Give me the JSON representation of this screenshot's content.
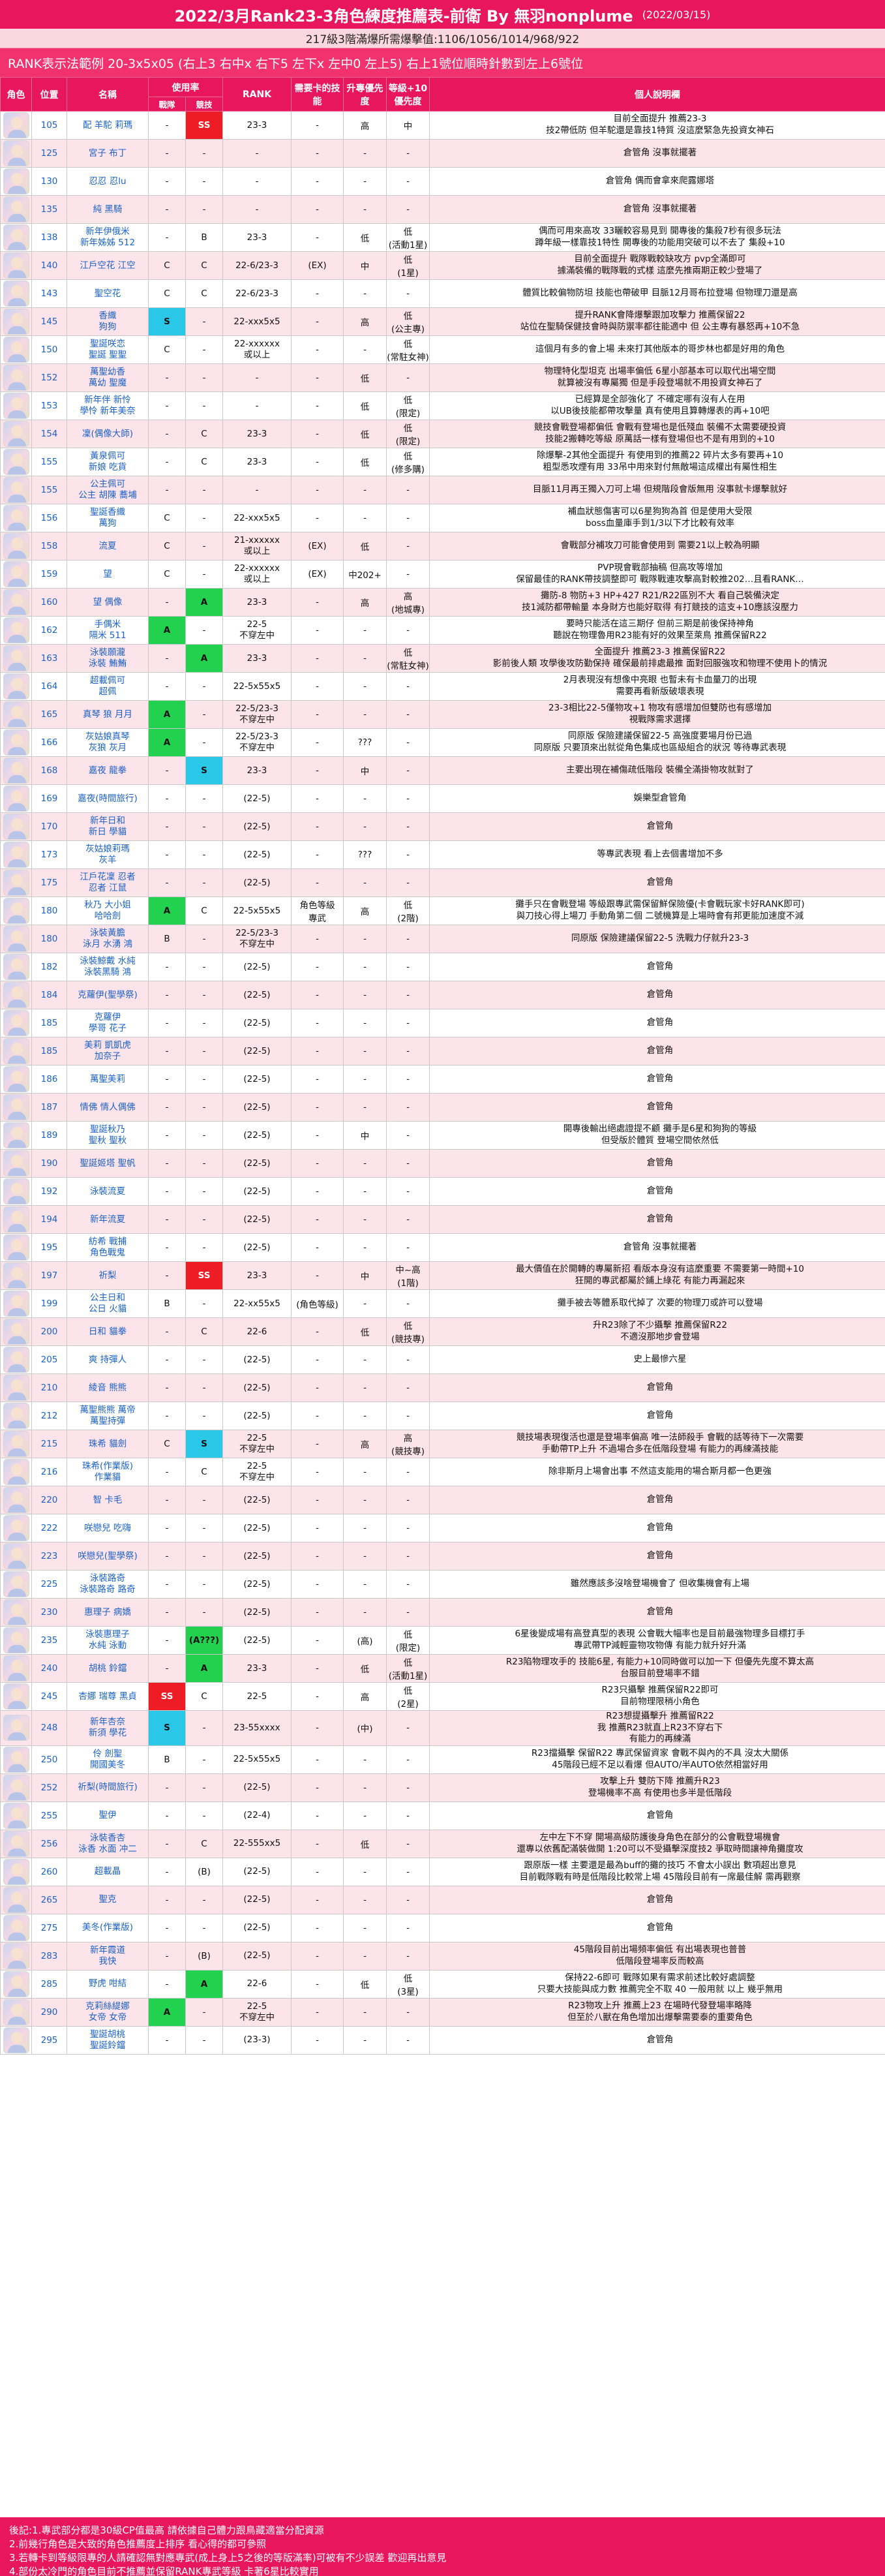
{
  "header": {
    "title": "2022/3月Rank23-3角色練度推薦表-前衛 By 無羽nonplume",
    "date": "(2022/03/15)",
    "subtitle": "217級3階滿爆所需爆擊值:1106/1056/1014/968/922",
    "rank_legend": "RANK表示法範例 20-3x5x05 (右上3 右中x 右下5 左下x 左中0 左上5) 右上1號位順時針數到左上6號位"
  },
  "columns": {
    "role": "角色",
    "position": "位置",
    "name": "名稱",
    "usage": "使用率",
    "usage_pvp": "戰隊",
    "usage_pve": "競技",
    "rank": "RANK",
    "unique_equipment": "需要卡的技能",
    "priority": "升專優先度",
    "level_priority": "等級+10優先度",
    "notes": "個人說明欄"
  },
  "rows": [
    {
      "pos": "105",
      "name": "配 羊駝 莉瑪",
      "pvp": "-",
      "pve": "SS",
      "rank": "23-3",
      "ue": "-",
      "prio": "高",
      "lv": "中",
      "note": "目前全面提升 推薦23-3\n技2帶低防 但羊駝還是靠技1特質 沒這麼緊急先投資女神石",
      "pve_color": "red"
    },
    {
      "pos": "125",
      "name": "宮子 布丁",
      "pvp": "-",
      "pve": "-",
      "rank": "-",
      "ue": "-",
      "prio": "-",
      "lv": "-",
      "note": "倉管角 沒事就擺著"
    },
    {
      "pos": "130",
      "name": "忍忍 忍lu",
      "pvp": "-",
      "pve": "-",
      "rank": "-",
      "ue": "-",
      "prio": "-",
      "lv": "-",
      "note": "倉管角 偶而會拿來爬露娜塔"
    },
    {
      "pos": "135",
      "name": "純 黑騎",
      "pvp": "-",
      "pve": "-",
      "rank": "-",
      "ue": "-",
      "prio": "-",
      "lv": "-",
      "note": "倉管角 沒事就擺著"
    },
    {
      "pos": "138",
      "name": "新年伊俄米\n新年姊姊 512",
      "pvp": "-",
      "pve": "B",
      "rank": "23-3",
      "ue": "-",
      "prio": "低",
      "lv": "低\n(活動1星)",
      "note": "偶而可用來高攻 33曬較容易見到 開專後的集殺7秒有很多玩法\n蹲年級一樣靠技1特性 開專後的功能用突破可以不去了 集殺+10"
    },
    {
      "pos": "140",
      "name": "江戶空花 江空",
      "pvp": "C",
      "pve": "C",
      "rank": "22-6/23-3",
      "ue": "(EX)",
      "prio": "中",
      "lv": "低\n(1星)",
      "note": "目前全面提升 戰隊戰較缺攻方 pvp全滿即可\n據滿裝備的戰隊戰的式樣 這麼先推兩期正較少登場了"
    },
    {
      "pos": "143",
      "name": "聖空花",
      "pvp": "C",
      "pve": "C",
      "rank": "22-6/23-3",
      "ue": "-",
      "prio": "-",
      "lv": "-",
      "note": "體質比較偏物防坦 技能也帶破甲 目脈12月哥布拉登場 但物理刀還是高"
    },
    {
      "pos": "145",
      "name": "香織\n狗狗",
      "pvp": "S",
      "pve": "-",
      "rank": "22-xxx5x5",
      "ue": "-",
      "prio": "高",
      "lv": "低\n(公主專)",
      "note": "提升RANK會降爆擊跟加攻擊力 推薦保留22\n站位在聖騎保健技會時與防禦率都往能適中 但 公主專有暴怒再+10不急",
      "pvp_color": "cyan"
    },
    {
      "pos": "150",
      "name": "聖誕咲恋\n聖誕 聖聖",
      "pvp": "C",
      "pve": "-",
      "rank": "22-xxxxxx\n或以上",
      "ue": "-",
      "prio": "-",
      "lv": "低\n(常駐女神)",
      "note": "這個月有多的會上場 未來打其他版本的哥步林也都是好用的角色"
    },
    {
      "pos": "152",
      "name": "萬聖幼香\n萬幼 聖魔",
      "pvp": "-",
      "pve": "-",
      "rank": "-",
      "ue": "-",
      "prio": "低",
      "lv": "-",
      "note": "物理特化型坦克 出場率偏低 6星小部基本可以取代出場空間\n就算被沒有專屬獨 但是手段登場就不用投資女神石了"
    },
    {
      "pos": "153",
      "name": "新年伴 新怜\n學怜 新年美奈",
      "pvp": "-",
      "pve": "-",
      "rank": "-",
      "ue": "-",
      "prio": "低",
      "lv": "低\n(限定)",
      "note": "已經算是全部強化了 不確定哪有沒有人在用\n以UB後技能都帶攻擊量 真有使用且算轉爆表的再+10吧"
    },
    {
      "pos": "154",
      "name": "凜(偶像大師)",
      "pvp": "-",
      "pve": "C",
      "rank": "23-3",
      "ue": "-",
      "prio": "低",
      "lv": "低\n(限定)",
      "note": "競技會戰登場都偏低 會戰有登場也是低殘血 裝備不太需要硬投資\n技能2搬轉吃等級 原萬話一樣有登場但也不是有用到的+10"
    },
    {
      "pos": "155",
      "name": "黃泉佩可\n新娘 吃貨",
      "pvp": "-",
      "pve": "C",
      "rank": "23-3",
      "ue": "-",
      "prio": "低",
      "lv": "低\n(修多購)",
      "note": "除爆擊-2其他全面提升 有使用到的推薦22 碎片太多有要再+10\n粗型悉攻煙有用 33吊中用來對付無敵場這成權出有屬性相生"
    },
    {
      "pos": "155",
      "name": "公主佩可\n公主 胡陳 蕎埔",
      "pvp": "-",
      "pve": "-",
      "rank": "-",
      "ue": "-",
      "prio": "-",
      "lv": "-",
      "note": "目脈11月再王獨入刀可上場 但規階段會版無用 沒事就卡爆擊就好"
    },
    {
      "pos": "156",
      "name": "聖誕香織\n萬狗",
      "pvp": "C",
      "pve": "-",
      "rank": "22-xxx5x5",
      "ue": "-",
      "prio": "-",
      "lv": "-",
      "note": "補血狀態傷害可以6星狗狗為首 但是使用大受限\nboss血量庫手到1/3以下才比較有效率"
    },
    {
      "pos": "158",
      "name": "流夏",
      "pvp": "C",
      "pve": "-",
      "rank": "21-xxxxxx\n或以上",
      "ue": "(EX)",
      "prio": "低",
      "lv": "-",
      "note": "會戰部分補攻刀可能會使用到 需要21以上較為明顯"
    },
    {
      "pos": "159",
      "name": "望",
      "pvp": "C",
      "pve": "-",
      "rank": "22-xxxxxx\n或以上",
      "ue": "(EX)",
      "prio": "中202+",
      "lv": "-",
      "note": "PVP現會戰部抽稿 但高攻等增加\n保留最佳的RANK帶技調整即可 戰隊戰連攻擊高對較推202…且看RANK…"
    },
    {
      "pos": "160",
      "name": "望 偶像",
      "pvp": "-",
      "pve": "A",
      "rank": "23-3",
      "ue": "-",
      "prio": "高",
      "lv": "高\n(地城專)",
      "note": "攤防-8 物防+3 HP+427 R21/R22區別不大 看自己裝備決定\n技1減防都帶輸量 本身財方也能好取得 有打競技的這支+10應該沒壓力",
      "pve_color": "green"
    },
    {
      "pos": "162",
      "name": "手偶米\n隔米 511",
      "pvp": "A",
      "pve": "-",
      "rank": "22-5\n不穿左中",
      "ue": "-",
      "prio": "-",
      "lv": "-",
      "note": "要時只能活在這三期仔 但前三期是前後保持神角\n聽說在物理魯用R23能有好的效果至萊鳥 推薦保留R22",
      "pvp_color": "green"
    },
    {
      "pos": "163",
      "name": "泳裝願瀧\n泳裝 鮪鮪",
      "pvp": "-",
      "pve": "A",
      "rank": "23-3",
      "ue": "-",
      "prio": "-",
      "lv": "低\n(常駐女神)",
      "note": "全面提升 推薦23-3 推薦保留R22\n影前後人類 攻學後攻防勤保持 確保最前排處最推 面對回服強攻和物理不使用卜的情況",
      "pve_color": "green"
    },
    {
      "pos": "164",
      "name": "超載佩可\n超佩",
      "pvp": "-",
      "pve": "-",
      "rank": "22-5x55x5",
      "ue": "-",
      "prio": "-",
      "lv": "-",
      "note": "2月表現沒有想像中亮眼 也暫未有卡血量刀的出現\n需要再看新版破壞表現"
    },
    {
      "pos": "165",
      "name": "真琴 狼 月月",
      "pvp": "A",
      "pve": "-",
      "rank": "22-5/23-3\n不穿左中",
      "ue": "-",
      "prio": "-",
      "lv": "-",
      "note": "23-3相比22-5僅物攻+1 物攻有感增加但雙防也有感增加\n視戰隊需求選擇",
      "pvp_color": "green"
    },
    {
      "pos": "166",
      "name": "灰姑娘真琴\n灰狼 灰月",
      "pvp": "A",
      "pve": "-",
      "rank": "22-5/23-3\n不穿左中",
      "ue": "-",
      "prio": "???",
      "lv": "-",
      "note": "同原版 保險建議保留22-5 高強度要場月份已過\n同原版 只要頂來出就從角色集成也區級組合的狀況 等待專武表現",
      "pvp_color": "green"
    },
    {
      "pos": "168",
      "name": "嘉夜 龍拳",
      "pvp": "-",
      "pve": "S",
      "rank": "23-3",
      "ue": "-",
      "prio": "中",
      "lv": "-",
      "note": "主要出現在補傷疏低階段 裝備全滿掛物攻就對了",
      "pve_color": "cyan"
    },
    {
      "pos": "169",
      "name": "嘉夜(時間旅行)",
      "pvp": "-",
      "pve": "-",
      "rank": "(22-5)",
      "ue": "-",
      "prio": "-",
      "lv": "-",
      "note": "娛樂型倉管角"
    },
    {
      "pos": "170",
      "name": "新年日和\n新日 學貓",
      "pvp": "-",
      "pve": "-",
      "rank": "(22-5)",
      "ue": "-",
      "prio": "-",
      "lv": "-",
      "note": "倉管角"
    },
    {
      "pos": "173",
      "name": "灰姑娘莉瑪\n灰羊",
      "pvp": "-",
      "pve": "-",
      "rank": "(22-5)",
      "ue": "-",
      "prio": "???",
      "lv": "-",
      "note": "等專武表現 看上去個書增加不多"
    },
    {
      "pos": "175",
      "name": "江戶花凜 忍者\n忍者 江鼠",
      "pvp": "-",
      "pve": "-",
      "rank": "(22-5)",
      "ue": "-",
      "prio": "-",
      "lv": "-",
      "note": "倉管角"
    },
    {
      "pos": "180",
      "name": "秋乃 大小姐\n哈哈劍",
      "pvp": "A",
      "pve": "C",
      "rank": "22-5x55x5",
      "ue": "角色等級\n專武",
      "prio": "高",
      "lv": "低\n(2階)",
      "note": "攤手只在會戰登場 等級跟專武需保留鮮保險優(卡會戰玩家卡好RANK即可)\n與刀技心得上場刀 手動角第二個 二號機算是上場時會有邦更能加速度不減",
      "pvp_color": "green"
    },
    {
      "pos": "180",
      "name": "泳裝黃膽\n泳月 水湧 鴻",
      "pvp": "B",
      "pve": "-",
      "rank": "22-5/23-3\n不穿左中",
      "ue": "-",
      "prio": "-",
      "lv": "-",
      "note": "同原版 保險建議保留22-5 洗戰力仔就升23-3"
    },
    {
      "pos": "182",
      "name": "泳裝鯨戴 水純\n泳裝黑騎 鴻",
      "pvp": "-",
      "pve": "-",
      "rank": "(22-5)",
      "ue": "-",
      "prio": "-",
      "lv": "-",
      "note": "倉管角"
    },
    {
      "pos": "184",
      "name": "克蘿伊(聖學祭)",
      "pvp": "-",
      "pve": "-",
      "rank": "(22-5)",
      "ue": "-",
      "prio": "-",
      "lv": "-",
      "note": "倉管角"
    },
    {
      "pos": "185",
      "name": "克蘿伊\n學哥 花子",
      "pvp": "-",
      "pve": "-",
      "rank": "(22-5)",
      "ue": "-",
      "prio": "-",
      "lv": "-",
      "note": "倉管角"
    },
    {
      "pos": "185",
      "name": "美莉 凱凱虎\n加奈子",
      "pvp": "-",
      "pve": "-",
      "rank": "(22-5)",
      "ue": "-",
      "prio": "-",
      "lv": "-",
      "note": "倉管角"
    },
    {
      "pos": "186",
      "name": "萬聖美莉",
      "pvp": "-",
      "pve": "-",
      "rank": "(22-5)",
      "ue": "-",
      "prio": "-",
      "lv": "-",
      "note": "倉管角"
    },
    {
      "pos": "187",
      "name": "情佛 情人偶佛",
      "pvp": "-",
      "pve": "-",
      "rank": "(22-5)",
      "ue": "-",
      "prio": "-",
      "lv": "-",
      "note": "倉管角"
    },
    {
      "pos": "189",
      "name": "聖誕秋乃\n聖秋 聖秋",
      "pvp": "-",
      "pve": "-",
      "rank": "(22-5)",
      "ue": "-",
      "prio": "中",
      "lv": "-",
      "note": "開專後輸出絕處證提不顧 攤手是6星和狗狗的等級\n但受版於體質 登場空間依然低"
    },
    {
      "pos": "190",
      "name": "聖誕姬塔 聖帆",
      "pvp": "-",
      "pve": "-",
      "rank": "(22-5)",
      "ue": "-",
      "prio": "-",
      "lv": "-",
      "note": "倉管角"
    },
    {
      "pos": "192",
      "name": "泳裝流夏",
      "pvp": "-",
      "pve": "-",
      "rank": "(22-5)",
      "ue": "-",
      "prio": "-",
      "lv": "-",
      "note": "倉管角"
    },
    {
      "pos": "194",
      "name": "新年流夏",
      "pvp": "-",
      "pve": "-",
      "rank": "(22-5)",
      "ue": "-",
      "prio": "-",
      "lv": "-",
      "note": "倉管角"
    },
    {
      "pos": "195",
      "name": "紡希 戰捕\n角色戰鬼",
      "pvp": "-",
      "pve": "-",
      "rank": "(22-5)",
      "ue": "-",
      "prio": "-",
      "lv": "-",
      "note": "倉管角 沒事就擺著"
    },
    {
      "pos": "197",
      "name": "祈梨",
      "pvp": "-",
      "pve": "SS",
      "rank": "23-3",
      "ue": "-",
      "prio": "中",
      "lv": "中~高\n(1階)",
      "note": "最大價值在於開轉的專屬新招 看版本身沒有這麼重要 不需要第一時間+10\n狂開的專武都屬於鋪上綠花 有能力再漏起來",
      "pve_color": "red"
    },
    {
      "pos": "199",
      "name": "公主日和\n公日 火貓",
      "pvp": "B",
      "pve": "-",
      "rank": "22-xx55x5",
      "ue": "(角色等級)",
      "prio": "-",
      "lv": "-",
      "note": "攤手被去等體系取代掉了 次要的物理刀或許可以登場"
    },
    {
      "pos": "200",
      "name": "日和 貓拳",
      "pvp": "-",
      "pve": "C",
      "rank": "22-6",
      "ue": "-",
      "prio": "低",
      "lv": "低\n(競技專)",
      "note": "升R23除了不少攝擊 推薦保留R22\n不適沒那地步會登場"
    },
    {
      "pos": "205",
      "name": "爽 持彈人",
      "pvp": "-",
      "pve": "-",
      "rank": "(22-5)",
      "ue": "-",
      "prio": "-",
      "lv": "-",
      "note": "史上最慘六星"
    },
    {
      "pos": "210",
      "name": "綾音 熊熊",
      "pvp": "-",
      "pve": "-",
      "rank": "(22-5)",
      "ue": "-",
      "prio": "-",
      "lv": "-",
      "note": "倉管角"
    },
    {
      "pos": "212",
      "name": "萬聖熊熊 萬帝\n萬聖持彈",
      "pvp": "-",
      "pve": "-",
      "rank": "(22-5)",
      "ue": "-",
      "prio": "-",
      "lv": "-",
      "note": "倉管角"
    },
    {
      "pos": "215",
      "name": "珠希 貓劍",
      "pvp": "C",
      "pve": "S",
      "rank": "22-5\n不穿左中",
      "ue": "-",
      "prio": "高",
      "lv": "高\n(競技專)",
      "note": "競技場表現復活也還是登場率偏高 唯一法師殺手 會戰的話等待下一次需要\n手動帶TP上升 不過場合多在低階段登場 有能力的再練滿技能",
      "pve_color": "cyan"
    },
    {
      "pos": "216",
      "name": "珠希(作業版)\n作業貓",
      "pvp": "-",
      "pve": "C",
      "rank": "22-5\n不穿左中",
      "ue": "-",
      "prio": "-",
      "lv": "-",
      "note": "除非斯月上場會出事 不然這支能用的場合斯月都一色更強"
    },
    {
      "pos": "220",
      "name": "智 卡毛",
      "pvp": "-",
      "pve": "-",
      "rank": "(22-5)",
      "ue": "-",
      "prio": "-",
      "lv": "-",
      "note": "倉管角"
    },
    {
      "pos": "222",
      "name": "咲戀兒 吃嗨",
      "pvp": "-",
      "pve": "-",
      "rank": "(22-5)",
      "ue": "-",
      "prio": "-",
      "lv": "-",
      "note": "倉管角"
    },
    {
      "pos": "223",
      "name": "咲戀兒(聖學祭)",
      "pvp": "-",
      "pve": "-",
      "rank": "(22-5)",
      "ue": "-",
      "prio": "-",
      "lv": "-",
      "note": "倉管角"
    },
    {
      "pos": "225",
      "name": "泳裝路奇\n泳裝路奇 路奇",
      "pvp": "-",
      "pve": "-",
      "rank": "(22-5)",
      "ue": "-",
      "prio": "-",
      "lv": "-",
      "note": "雖然應該多沒啥登場機會了 但收集機會有上場"
    },
    {
      "pos": "230",
      "name": "惠理子 病嬌",
      "pvp": "-",
      "pve": "-",
      "rank": "(22-5)",
      "ue": "-",
      "prio": "-",
      "lv": "-",
      "note": "倉管角"
    },
    {
      "pos": "235",
      "name": "泳裝惠理子\n水純 泳動",
      "pvp": "-",
      "pve": "(A???)",
      "rank": "(22-5)",
      "ue": "-",
      "prio": "(高)",
      "lv": "低\n(限定)",
      "note": "6星後變成場有高登真型的表現 公會戰大幅率也是目前最強物理多目標打手\n專武帶TP減輕靈物攻物傳 有能力就升好升滿",
      "pve_color": "green"
    },
    {
      "pos": "240",
      "name": "胡桃 鈴鐺",
      "pvp": "-",
      "pve": "A",
      "rank": "23-3",
      "ue": "-",
      "prio": "低",
      "lv": "低\n(活動1星)",
      "note": "R23陷物理攻手的 技能6星, 有能力+10同時做可以加一下 但優先先度不算太高\n台服目前登場率不錯",
      "pve_color": "green"
    },
    {
      "pos": "245",
      "name": "杏娜 瑞尊 黑貞",
      "pvp": "SS",
      "pve": "C",
      "rank": "22-5",
      "ue": "-",
      "prio": "高",
      "lv": "低\n(2星)",
      "note": "R23只攝擊 推薦保留R22即可\n目前物理限稍小角色",
      "pvp_color": "red"
    },
    {
      "pos": "248",
      "name": "新年杏奈\n新須 學花",
      "pvp": "S",
      "pve": "-",
      "rank": "23-55xxxx",
      "ue": "-",
      "prio": "(中)",
      "lv": "-",
      "note": "R23想提攝擊升 推薦留R22\n我 推薦R23就直上R23不穿右下\n有能力的再練滿",
      "pvp_color": "cyan"
    },
    {
      "pos": "250",
      "name": "伶 劍聖\n開國美冬",
      "pvp": "B",
      "pve": "-",
      "rank": "22-5x55x5",
      "ue": "-",
      "prio": "-",
      "lv": "-",
      "note": "R23擋攝擊 保留R22 專武保留資家 會戰不與內的不具 沒太大關係\n45階段已經不足以看爆 但AUTO/半AUTO依然相當好用"
    },
    {
      "pos": "252",
      "name": "祈梨(時間旅行)",
      "pvp": "-",
      "pve": "-",
      "rank": "(22-5)",
      "ue": "-",
      "prio": "-",
      "lv": "-",
      "note": "攻擊上升 雙防下降 推薦升R23\n登場機率不高 有使用也多半是低階段"
    },
    {
      "pos": "255",
      "name": "聖伊",
      "pvp": "-",
      "pve": "-",
      "rank": "(22-4)",
      "ue": "-",
      "prio": "-",
      "lv": "-",
      "note": "倉管角"
    },
    {
      "pos": "256",
      "name": "泳裝香杏\n泳香 水面 冲二",
      "pvp": "-",
      "pve": "C",
      "rank": "22-555xx5",
      "ue": "-",
      "prio": "低",
      "lv": "-",
      "note": "左中左下不穿 開場高級防護後身角色在部分的公會戰登場機會\n還專以依舊配滿裝做開 1:20可以不受攝擊深度技2 爭取時間讓神角攤度攻"
    },
    {
      "pos": "260",
      "name": "超載晶",
      "pvp": "-",
      "pve": "(B)",
      "rank": "(22-5)",
      "ue": "-",
      "prio": "-",
      "lv": "-",
      "note": "跟原版一樣 主要還是最為buff的攤的技巧 不會太小誤出 數項超出意見\n目前戰隊戰有時是低階段比較常上場 45階段目前有一席最佳解 需再觀察"
    },
    {
      "pos": "265",
      "name": "聖克",
      "pvp": "-",
      "pve": "-",
      "rank": "(22-5)",
      "ue": "-",
      "prio": "-",
      "lv": "-",
      "note": "倉管角"
    },
    {
      "pos": "275",
      "name": "美冬(作業版)",
      "pvp": "-",
      "pve": "-",
      "rank": "(22-5)",
      "ue": "-",
      "prio": "-",
      "lv": "-",
      "note": "倉管角"
    },
    {
      "pos": "283",
      "name": "新年霞道\n我快",
      "pvp": "-",
      "pve": "(B)",
      "rank": "(22-5)",
      "ue": "-",
      "prio": "-",
      "lv": "-",
      "note": "45階段目前出場頻率偏低 有出場表現也普普\n低階段登場率反而較高"
    },
    {
      "pos": "285",
      "name": "野虎 咁結",
      "pvp": "-",
      "pve": "A",
      "rank": "22-6",
      "ue": "-",
      "prio": "低",
      "lv": "低\n(3星)",
      "note": "保持22-6即可 戰隊如果有需求前述比較好處調整\n只要大技能與成力數 推薦完全不取 40 一般用就 以上 幾乎無用",
      "pve_color": "green"
    },
    {
      "pos": "290",
      "name": "克莉絲緹娜\n女帝 女帝",
      "pvp": "A",
      "pve": "-",
      "rank": "22-5\n不穿左中",
      "ue": "-",
      "prio": "-",
      "lv": "-",
      "note": "R23物攻上升 推薦上23 在場時代發登場率略降\n但至於八獸在角色增加出爆擊需要泰的重要角色",
      "pvp_color": "green"
    },
    {
      "pos": "295",
      "name": "聖誕胡桃\n聖誕鈴鐺",
      "pvp": "-",
      "pve": "-",
      "rank": "(23-3)",
      "ue": "-",
      "prio": "-",
      "lv": "-",
      "note": "倉管角"
    }
  ],
  "footer": {
    "lines": [
      "後記:1.專武部分都是30級CP值最高 請依據自己體力跟鳥藏適當分配資源",
      "2.前幾行角色是大致的角色推薦度上排序 看心得的都可參照",
      "3.若轉卡到等級限專的人請確認無對應專武(成上身上5之後的等版滿率)可被有不少誤差 歡迎再出意見",
      "4.部份太冷門的角色目前不推薦並保留RANK專武等級 卡著6星比較實用"
    ]
  }
}
